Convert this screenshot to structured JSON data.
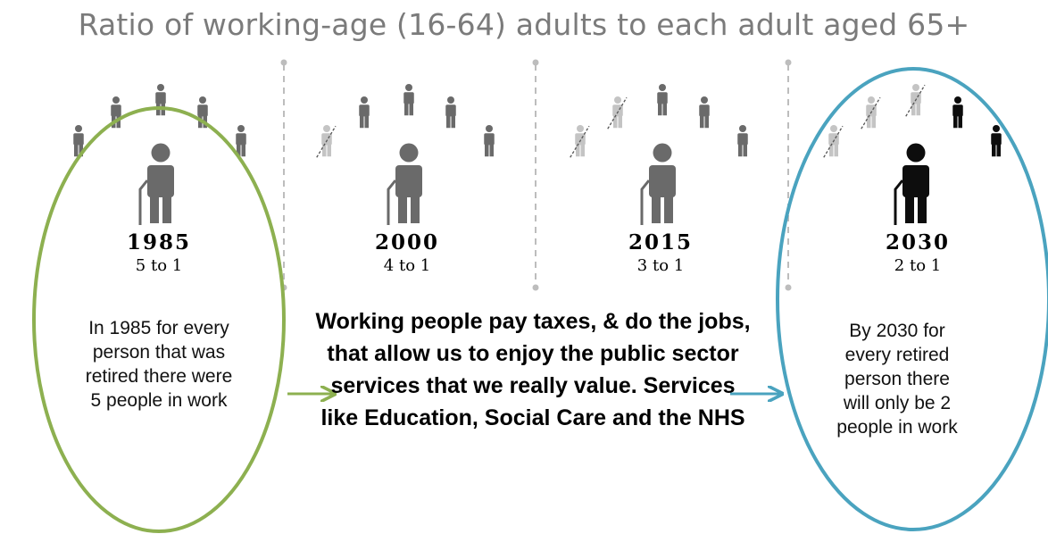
{
  "title": "Ratio of working-age (16-64) adults to each adult aged 65+",
  "panels": [
    {
      "year": "1985",
      "ratio": "5 to 1",
      "workers": 5,
      "removed": 0,
      "tone": "gray"
    },
    {
      "year": "2000",
      "ratio": "4 to 1",
      "workers": 5,
      "removed": 1,
      "tone": "gray"
    },
    {
      "year": "2015",
      "ratio": "3 to 1",
      "workers": 5,
      "removed": 2,
      "tone": "gray"
    },
    {
      "year": "2030",
      "ratio": "2 to 1",
      "workers": 5,
      "removed": 3,
      "tone": "dark"
    }
  ],
  "notes": {
    "left": "In 1985 for every person that was retired there were 5 people in work",
    "center": "Working people pay taxes, & do the jobs, that allow us to enjoy the public sector services that we really  value. Services like Education, Social Care and the NHS",
    "right": "By 2030 for every retired person there will only be 2 people in work"
  },
  "colors": {
    "green_ellipse": "#8db050",
    "blue_ellipse": "#4aa3bf",
    "figure_gray": "#6a6a6a",
    "figure_faded": "#c4c4c4",
    "figure_dark": "#0d0d0d",
    "divider": "#bdbdbd"
  }
}
